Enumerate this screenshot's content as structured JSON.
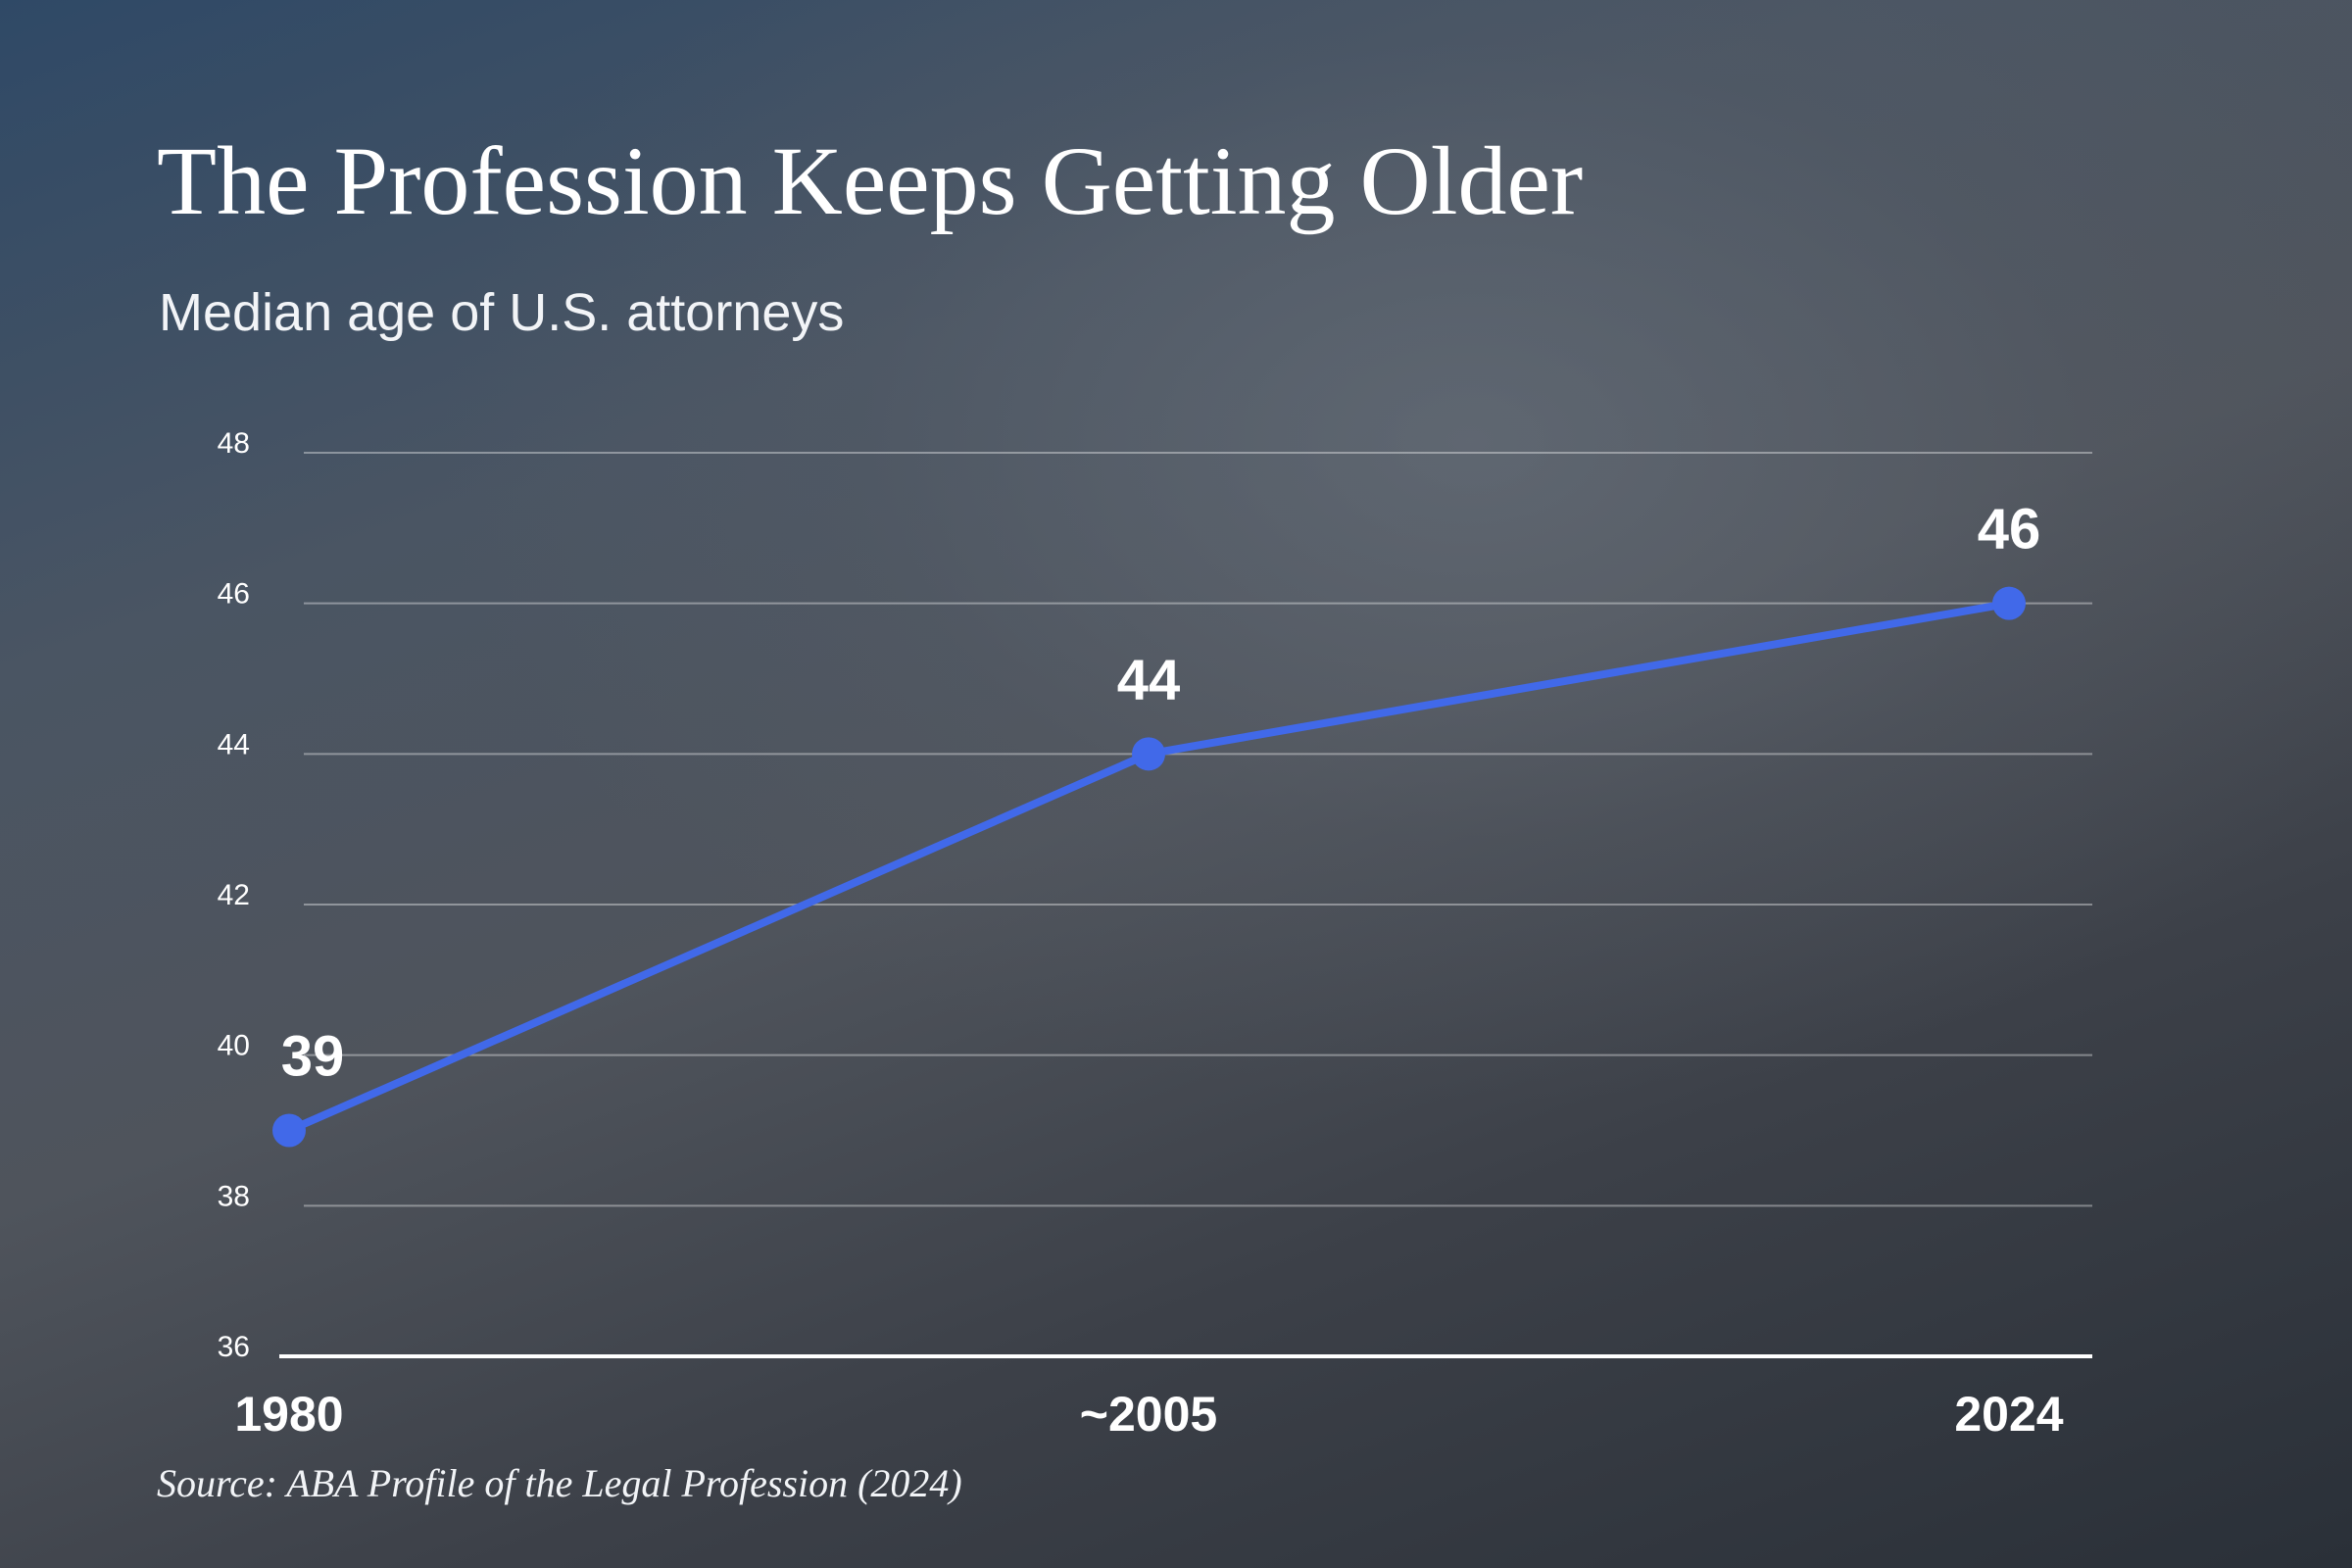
{
  "header": {
    "title": "The Profession Keeps Getting Older",
    "subtitle": "Median age of U.S. attorneys"
  },
  "footer": {
    "source": "Source: ABA Profile of the Legal Profession (2024)"
  },
  "colors": {
    "line": "#4169e9",
    "text": "#ffffff"
  },
  "chart_data": {
    "type": "line",
    "title": "The Profession Keeps Getting Older",
    "subtitle": "Median age of U.S. attorneys",
    "xlabel": "",
    "ylabel": "",
    "categories": [
      "1980",
      "~2005",
      "2024"
    ],
    "values": [
      39,
      44,
      46
    ],
    "data_labels": [
      "39",
      "44",
      "46"
    ],
    "ylim": [
      36,
      48
    ],
    "yticks": [
      36,
      38,
      40,
      42,
      44,
      46,
      48
    ],
    "grid": true,
    "legend": "none"
  }
}
